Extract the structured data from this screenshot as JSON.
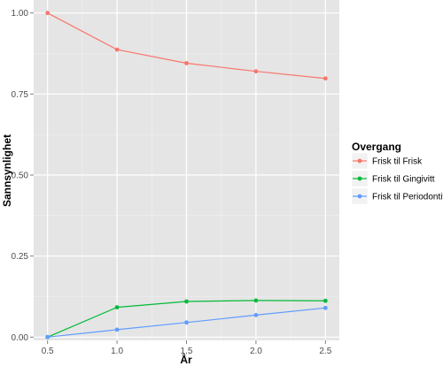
{
  "chart_data": {
    "type": "line",
    "xlabel": "År",
    "ylabel": "Sannsynlighet",
    "x": [
      0.5,
      1.0,
      1.5,
      2.0,
      2.5
    ],
    "x_ticks": [
      "0.5",
      "1.0",
      "1.5",
      "2.0",
      "2.5"
    ],
    "y_ticks": [
      "0.00",
      "0.25",
      "0.50",
      "0.75",
      "1.00"
    ],
    "xlim": [
      0.4,
      2.6
    ],
    "ylim": [
      -0.01,
      1.04
    ],
    "grid": true,
    "legend": {
      "title": "Overgang",
      "placement": "right"
    },
    "series": [
      {
        "name": "Frisk til Frisk",
        "color": "#F8766D",
        "values": [
          1.0,
          0.887,
          0.845,
          0.82,
          0.798
        ]
      },
      {
        "name": "Frisk til Gingivitt",
        "color": "#00BA38",
        "values": [
          0.0,
          0.092,
          0.11,
          0.113,
          0.112
        ]
      },
      {
        "name": "Frisk til Periodontitt",
        "color": "#619CFF",
        "values": [
          0.0,
          0.023,
          0.045,
          0.068,
          0.09
        ]
      }
    ]
  }
}
